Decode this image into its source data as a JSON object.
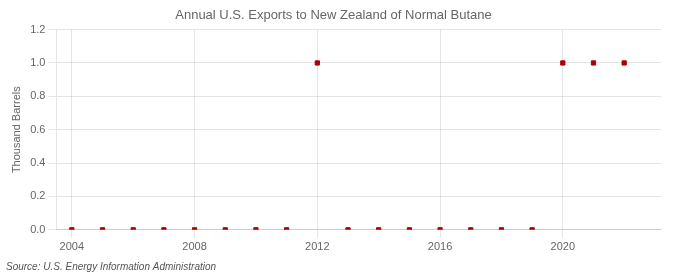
{
  "chart_data": {
    "type": "scatter",
    "title": "Annual U.S. Exports to New Zealand of Normal Butane",
    "ylabel": "Thousand Barrels",
    "annotation": "Source: U.S. Energy Information Administration",
    "x": [
      2004,
      2005,
      2006,
      2007,
      2008,
      2009,
      2010,
      2011,
      2012,
      2013,
      2014,
      2015,
      2016,
      2017,
      2018,
      2019,
      2020,
      2021,
      2022
    ],
    "values": [
      0,
      0,
      0,
      0,
      0,
      0,
      0,
      0,
      1,
      0,
      0,
      0,
      0,
      0,
      0,
      0,
      1,
      1,
      1
    ],
    "color": "#aa0000",
    "marker": "square",
    "xlim": [
      2003.5,
      2023.2
    ],
    "ylim": [
      0.0,
      1.2
    ],
    "xticks": [
      2004,
      2008,
      2012,
      2016,
      2020
    ],
    "yticks": [
      {
        "value": 0,
        "label": "0.0"
      },
      0.2,
      0.4,
      0.6,
      0.8,
      {
        "value": 1,
        "label": "1.0"
      },
      1.2
    ],
    "grid": true
  }
}
